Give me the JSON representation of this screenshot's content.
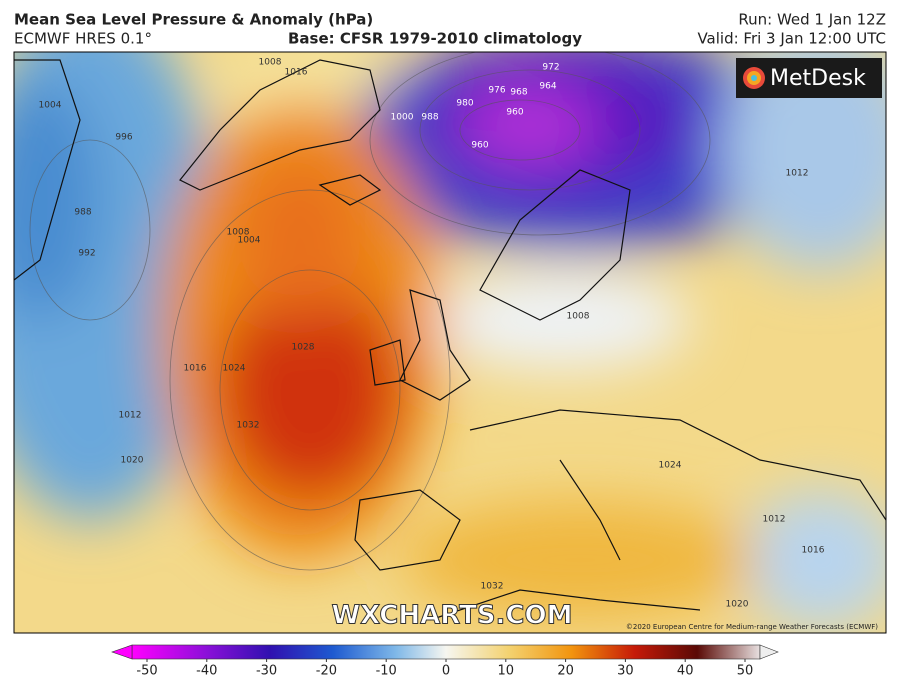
{
  "header": {
    "title": "Mean Sea Level Pressure & Anomaly (hPa)",
    "model": "ECMWF HRES 0.1°",
    "base": "Base: CFSR 1979-2010 climatology",
    "run": "Run: Wed 1 Jan 12Z",
    "valid": "Valid: Fri 3 Jan 12:00 UTC"
  },
  "logo": "MetDesk",
  "watermark": "WXCHARTS.COM",
  "copyright": "©2020 European Centre for Medium-range Weather Forecasts (ECMWF)",
  "contour_labels": [
    1008,
    1016,
    1004,
    996,
    988,
    992,
    1000,
    988,
    980,
    976,
    972,
    968,
    964,
    960,
    960,
    1008,
    1004,
    1028,
    1024,
    1016,
    1032,
    1012,
    1020,
    1012,
    1008,
    1024,
    1032,
    1020,
    1016,
    1012
  ],
  "colorbar": {
    "ticks": [
      -50,
      -40,
      -30,
      -20,
      -10,
      0,
      10,
      20,
      30,
      40,
      50
    ]
  }
}
